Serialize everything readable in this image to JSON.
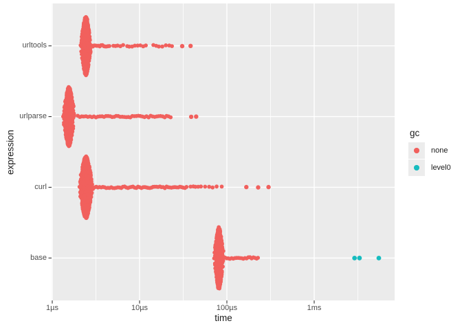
{
  "axes": {
    "x": {
      "label": "time",
      "scale": "log10",
      "ticks": [
        {
          "label": "1µs",
          "us": 1
        },
        {
          "label": "10µs",
          "us": 10
        },
        {
          "label": "100µs",
          "us": 100
        },
        {
          "label": "1ms",
          "us": 1000
        }
      ],
      "minor_gridlines_us": [
        3.162,
        31.62,
        316.2,
        3162
      ],
      "range_us": [
        0.98,
        8300
      ]
    },
    "y": {
      "label": "expression",
      "categories": [
        "base",
        "curl",
        "urlparse",
        "urltools"
      ]
    }
  },
  "legend": {
    "title": "gc",
    "items": [
      {
        "label": "none",
        "color": "#F1605D"
      },
      {
        "label": "level0",
        "color": "#17BCBF"
      }
    ]
  },
  "colors": {
    "background": "#FFFFFF",
    "panel_bg": "#EBEBEB",
    "gridline": "#FFFFFF",
    "axis_text": "#4D4D4D",
    "tick_mark": "#333333"
  },
  "chart_data": {
    "type": "scatter",
    "subtype": "beeswarm-violin",
    "x_unit": "microseconds",
    "title": "",
    "xlabel": "time",
    "ylabel": "expression",
    "series": [
      {
        "expression": "urltools",
        "gc": "none",
        "cluster": {
          "center_us": 2.43,
          "log10_sd": 0.02,
          "n_points": 800,
          "spread_frac": 0.42
        },
        "trail_us": [
          2.81,
          2.91,
          3.02,
          3.13,
          3.25,
          3.37,
          3.5,
          3.62,
          3.76,
          3.9,
          4.04,
          4.19,
          4.35,
          4.51,
          5.02,
          5.3,
          5.6,
          6.03,
          6.48,
          7.23,
          7.62,
          8.2,
          8.83,
          9.5,
          10.2,
          11.0,
          11.8,
          14.4,
          15.5,
          16.6,
          18.2,
          20.0,
          21.9,
          23.5
        ],
        "outliers_us": [
          30.8,
          38.4
        ]
      },
      {
        "expression": "urlparse",
        "gc": "none",
        "cluster": {
          "center_us": 1.55,
          "log10_sd": 0.022,
          "n_points": 1000,
          "spread_frac": 0.42
        },
        "trail_us": [
          1.96,
          2.07,
          2.18,
          2.3,
          2.43,
          2.56,
          2.7,
          2.85,
          3.0,
          3.17,
          3.34,
          3.52,
          3.72,
          3.92,
          4.13,
          4.36,
          4.6,
          4.85,
          5.12,
          5.4,
          5.69,
          6.0,
          6.33,
          6.68,
          7.04,
          7.43,
          7.83,
          8.26,
          8.71,
          9.19,
          9.69,
          10.2,
          10.8,
          11.4,
          12.0,
          12.7,
          13.4,
          14.1,
          14.9,
          15.7,
          16.5,
          17.4,
          18.4,
          19.4,
          20.4,
          21.5,
          22.7
        ],
        "outliers_us": [
          39.0,
          44.5
        ]
      },
      {
        "expression": "curl",
        "gc": "none",
        "cluster": {
          "center_us": 2.43,
          "log10_sd": 0.026,
          "n_points": 1200,
          "spread_frac": 0.44
        },
        "trail_us": [
          2.92,
          3.05,
          3.19,
          3.33,
          3.48,
          3.64,
          3.8,
          3.97,
          4.15,
          4.34,
          4.54,
          4.74,
          4.95,
          5.18,
          5.41,
          5.65,
          5.91,
          6.17,
          6.45,
          6.74,
          7.05,
          7.36,
          7.69,
          8.04,
          8.4,
          8.78,
          9.18,
          9.59,
          10.0,
          10.5,
          11.0,
          11.5,
          12.0,
          12.5,
          13.1,
          13.7,
          14.3,
          14.9,
          15.6,
          16.3,
          17.1,
          17.8,
          18.6,
          19.5,
          20.4,
          21.3,
          22.2,
          23.2,
          24.3,
          25.4,
          26.5,
          27.7,
          29.0,
          30.3,
          31.6,
          33.1,
          34.5,
          38.4,
          41.3,
          43.6,
          46.9,
          50.4,
          56.3,
          62.6,
          68.6,
          76.3,
          87.3
        ],
        "outliers_us": [
          167,
          228,
          300
        ]
      },
      {
        "expression": "base",
        "gc": "none",
        "cluster": {
          "center_us": 81,
          "log10_sd": 0.018,
          "n_points": 800,
          "spread_frac": 0.44
        },
        "trail_us": [
          95,
          99.3,
          103.8,
          108.4,
          113.3,
          118.4,
          123.8,
          129.3,
          135.2,
          141.2,
          147.6,
          154.2,
          161.2,
          168.4,
          176.0,
          183.9,
          192.2,
          200.9,
          209.9,
          219.4,
          227
        ],
        "outliers_us": []
      },
      {
        "expression": "base",
        "gc": "level0",
        "points_us": [
          2900,
          3300,
          5500
        ]
      }
    ]
  }
}
